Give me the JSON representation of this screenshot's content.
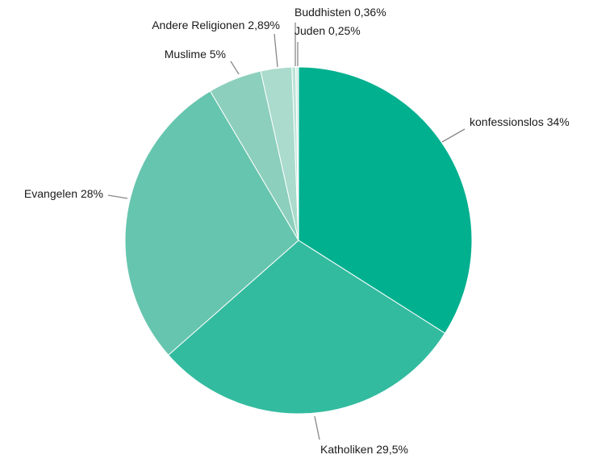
{
  "chart_data": {
    "type": "pie",
    "title": "",
    "start_angle_deg": 0,
    "direction": "clockwise",
    "slices": [
      {
        "label": "konfessionslos 34%",
        "name": "konfessionslos",
        "value": 34,
        "color": "#00b08f"
      },
      {
        "label": "Katholiken 29,5%",
        "name": "Katholiken",
        "value": 29.5,
        "color": "#33bb9f"
      },
      {
        "label": "Evangelen 28%",
        "name": "Evangelen",
        "value": 28,
        "color": "#66c5ae"
      },
      {
        "label": "Muslime 5%",
        "name": "Muslime",
        "value": 5,
        "color": "#8ccfbc"
      },
      {
        "label": "Andere Religionen 2,89%",
        "name": "Andere Religionen",
        "value": 2.89,
        "color": "#aadbcc"
      },
      {
        "label": "Buddhisten 0,36%",
        "name": "Buddhisten",
        "value": 0.36,
        "color": "#bde3d7"
      },
      {
        "label": "Juden 0,25%",
        "name": "Juden",
        "value": 0.25,
        "color": "#d2ece4"
      }
    ],
    "legend": "none"
  }
}
